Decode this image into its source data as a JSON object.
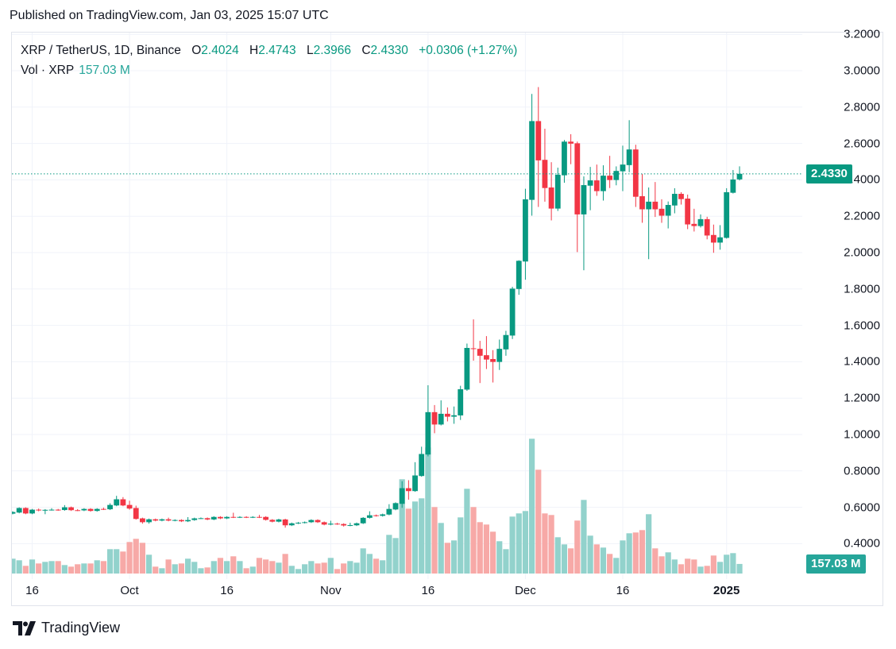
{
  "published": "Published on TradingView.com, Jan 03, 2025 15:07 UTC",
  "legend": {
    "symbol": "XRP / TetherUS, 1D, Binance",
    "o_label": "O",
    "o": "2.4024",
    "h_label": "H",
    "h": "2.4743",
    "l_label": "L",
    "l": "2.3966",
    "c_label": "C",
    "c": "2.4330",
    "change": "+0.0306 (+1.27%)",
    "vol_label": "Vol · XRP",
    "vol_value": "157.03 M"
  },
  "badges": {
    "price": "2.4330",
    "volume": "157.03 M"
  },
  "footer": {
    "brand": "TradingView"
  },
  "colors": {
    "up": "#089981",
    "down": "#F23645",
    "vol_up": "#92D2CC",
    "vol_down": "#F7A9A7",
    "grid": "#f0f3fa"
  },
  "chart_data": {
    "type": "candlestick",
    "title": "XRP / TetherUS, 1D, Binance",
    "y_range": [
      0.3,
      3.2
    ],
    "y_ticks": [
      "3.2000",
      "3.0000",
      "2.8000",
      "2.6000",
      "2.4000",
      "2.2000",
      "2.0000",
      "1.8000",
      "1.6000",
      "1.4000",
      "1.2000",
      "1.0000",
      "0.8000",
      "0.6000",
      "0.4000"
    ],
    "x_ticks": [
      {
        "label": "16",
        "date": "2024-09-16"
      },
      {
        "label": "Oct",
        "date": "2024-10-01"
      },
      {
        "label": "16",
        "date": "2024-10-16"
      },
      {
        "label": "Nov",
        "date": "2024-11-01"
      },
      {
        "label": "16",
        "date": "2024-11-16"
      },
      {
        "label": "Dec",
        "date": "2024-12-01"
      },
      {
        "label": "16",
        "date": "2024-12-16"
      },
      {
        "label": "2025",
        "date": "2025-01-01"
      }
    ],
    "grid": true,
    "last_price": 2.433,
    "columns": [
      "date",
      "open",
      "high",
      "low",
      "close",
      "volume_M"
    ],
    "candles": [
      [
        "2024-09-13",
        0.565,
        0.578,
        0.561,
        0.574,
        243
      ],
      [
        "2024-09-14",
        0.571,
        0.6,
        0.567,
        0.596,
        217
      ],
      [
        "2024-09-15",
        0.596,
        0.6,
        0.562,
        0.566,
        126
      ],
      [
        "2024-09-16",
        0.566,
        0.591,
        0.562,
        0.587,
        230
      ],
      [
        "2024-09-17",
        0.587,
        0.593,
        0.578,
        0.585,
        165
      ],
      [
        "2024-09-18",
        0.585,
        0.59,
        0.562,
        0.586,
        191
      ],
      [
        "2024-09-19",
        0.586,
        0.595,
        0.582,
        0.587,
        204
      ],
      [
        "2024-09-20",
        0.587,
        0.591,
        0.581,
        0.585,
        204
      ],
      [
        "2024-09-21",
        0.585,
        0.612,
        0.581,
        0.6,
        139
      ],
      [
        "2024-09-22",
        0.6,
        0.604,
        0.58,
        0.584,
        113
      ],
      [
        "2024-09-23",
        0.584,
        0.59,
        0.579,
        0.583,
        152
      ],
      [
        "2024-09-24",
        0.583,
        0.595,
        0.579,
        0.591,
        165
      ],
      [
        "2024-09-25",
        0.591,
        0.595,
        0.576,
        0.58,
        165
      ],
      [
        "2024-09-26",
        0.58,
        0.595,
        0.576,
        0.591,
        217
      ],
      [
        "2024-09-27",
        0.591,
        0.598,
        0.585,
        0.589,
        204
      ],
      [
        "2024-09-28",
        0.589,
        0.622,
        0.585,
        0.613,
        399
      ],
      [
        "2024-09-29",
        0.61,
        0.663,
        0.606,
        0.644,
        399
      ],
      [
        "2024-09-30",
        0.644,
        0.656,
        0.606,
        0.61,
        360
      ],
      [
        "2024-10-01",
        0.613,
        0.636,
        0.587,
        0.593,
        516
      ],
      [
        "2024-10-02",
        0.596,
        0.609,
        0.532,
        0.536,
        568
      ],
      [
        "2024-10-03",
        0.539,
        0.543,
        0.51,
        0.518,
        503
      ],
      [
        "2024-10-04",
        0.518,
        0.538,
        0.51,
        0.534,
        308
      ],
      [
        "2024-10-05",
        0.534,
        0.538,
        0.523,
        0.527,
        113
      ],
      [
        "2024-10-06",
        0.527,
        0.538,
        0.523,
        0.534,
        87
      ],
      [
        "2024-10-07",
        0.534,
        0.543,
        0.523,
        0.527,
        230
      ],
      [
        "2024-10-08",
        0.527,
        0.534,
        0.523,
        0.53,
        152
      ],
      [
        "2024-10-09",
        0.53,
        0.534,
        0.519,
        0.523,
        165
      ],
      [
        "2024-10-10",
        0.523,
        0.546,
        0.519,
        0.53,
        243
      ],
      [
        "2024-10-11",
        0.53,
        0.543,
        0.526,
        0.539,
        191
      ],
      [
        "2024-10-12",
        0.539,
        0.544,
        0.535,
        0.54,
        87
      ],
      [
        "2024-10-13",
        0.54,
        0.544,
        0.529,
        0.533,
        100
      ],
      [
        "2024-10-14",
        0.533,
        0.551,
        0.529,
        0.547,
        204
      ],
      [
        "2024-10-15",
        0.547,
        0.551,
        0.535,
        0.539,
        256
      ],
      [
        "2024-10-16",
        0.539,
        0.551,
        0.535,
        0.547,
        204
      ],
      [
        "2024-10-17",
        0.547,
        0.57,
        0.541,
        0.545,
        282
      ],
      [
        "2024-10-18",
        0.545,
        0.551,
        0.541,
        0.547,
        204
      ],
      [
        "2024-10-19",
        0.547,
        0.551,
        0.541,
        0.545,
        87
      ],
      [
        "2024-10-20",
        0.545,
        0.551,
        0.541,
        0.547,
        113
      ],
      [
        "2024-10-21",
        0.547,
        0.558,
        0.541,
        0.545,
        256
      ],
      [
        "2024-10-22",
        0.547,
        0.551,
        0.527,
        0.531,
        230
      ],
      [
        "2024-10-23",
        0.531,
        0.535,
        0.517,
        0.521,
        204
      ],
      [
        "2024-10-24",
        0.521,
        0.537,
        0.517,
        0.533,
        178
      ],
      [
        "2024-10-25",
        0.533,
        0.537,
        0.488,
        0.501,
        321
      ],
      [
        "2024-10-26",
        0.501,
        0.516,
        0.497,
        0.512,
        126
      ],
      [
        "2024-10-27",
        0.512,
        0.519,
        0.508,
        0.515,
        74
      ],
      [
        "2024-10-28",
        0.515,
        0.522,
        0.511,
        0.518,
        152
      ],
      [
        "2024-10-29",
        0.518,
        0.534,
        0.514,
        0.53,
        204
      ],
      [
        "2024-10-30",
        0.53,
        0.534,
        0.514,
        0.518,
        165
      ],
      [
        "2024-10-31",
        0.518,
        0.522,
        0.501,
        0.505,
        178
      ],
      [
        "2024-11-01",
        0.505,
        0.526,
        0.501,
        0.51,
        256
      ],
      [
        "2024-11-02",
        0.51,
        0.514,
        0.504,
        0.508,
        74
      ],
      [
        "2024-11-03",
        0.508,
        0.512,
        0.494,
        0.5,
        165
      ],
      [
        "2024-11-04",
        0.5,
        0.515,
        0.496,
        0.502,
        204
      ],
      [
        "2024-11-05",
        0.501,
        0.516,
        0.497,
        0.512,
        178
      ],
      [
        "2024-11-06",
        0.512,
        0.546,
        0.508,
        0.542,
        412
      ],
      [
        "2024-11-07",
        0.542,
        0.578,
        0.538,
        0.556,
        321
      ],
      [
        "2024-11-08",
        0.556,
        0.56,
        0.549,
        0.553,
        243
      ],
      [
        "2024-11-09",
        0.553,
        0.565,
        0.549,
        0.561,
        217
      ],
      [
        "2024-11-10",
        0.56,
        0.617,
        0.556,
        0.591,
        633
      ],
      [
        "2024-11-11",
        0.588,
        0.627,
        0.584,
        0.623,
        581
      ],
      [
        "2024-11-12",
        0.619,
        0.743,
        0.597,
        0.705,
        1543
      ],
      [
        "2024-11-13",
        0.705,
        0.749,
        0.642,
        0.689,
        1062
      ],
      [
        "2024-11-14",
        0.689,
        0.848,
        0.685,
        0.775,
        1179
      ],
      [
        "2024-11-15",
        0.772,
        0.933,
        0.768,
        0.893,
        1231
      ],
      [
        "2024-11-16",
        0.89,
        1.271,
        0.88,
        1.123,
        2063
      ],
      [
        "2024-11-17",
        1.123,
        1.162,
        1.007,
        1.055,
        1088
      ],
      [
        "2024-11-18",
        1.055,
        1.188,
        1.05,
        1.114,
        828
      ],
      [
        "2024-11-19",
        1.114,
        1.149,
        1.072,
        1.098,
        503
      ],
      [
        "2024-11-20",
        1.098,
        1.154,
        1.059,
        1.106,
        542
      ],
      [
        "2024-11-21",
        1.105,
        1.268,
        1.08,
        1.249,
        919
      ],
      [
        "2024-11-22",
        1.247,
        1.5,
        1.24,
        1.476,
        1387
      ],
      [
        "2024-11-23",
        1.474,
        1.633,
        1.406,
        1.47,
        1088
      ],
      [
        "2024-11-24",
        1.471,
        1.515,
        1.283,
        1.433,
        841
      ],
      [
        "2024-11-25",
        1.436,
        1.541,
        1.36,
        1.412,
        802
      ],
      [
        "2024-11-26",
        1.415,
        1.464,
        1.286,
        1.399,
        685
      ],
      [
        "2024-11-27",
        1.399,
        1.522,
        1.355,
        1.471,
        529
      ],
      [
        "2024-11-28",
        1.468,
        1.57,
        1.433,
        1.547,
        399
      ],
      [
        "2024-11-29",
        1.544,
        1.812,
        1.525,
        1.802,
        932
      ],
      [
        "2024-11-30",
        1.8,
        1.958,
        1.768,
        1.955,
        984
      ],
      [
        "2024-12-01",
        1.951,
        2.351,
        1.851,
        2.293,
        1023
      ],
      [
        "2024-12-02",
        2.29,
        2.872,
        2.203,
        2.723,
        2206
      ],
      [
        "2024-12-03",
        2.723,
        2.91,
        2.251,
        2.507,
        1699
      ],
      [
        "2024-12-04",
        2.51,
        2.681,
        2.28,
        2.355,
        984
      ],
      [
        "2024-12-05",
        2.358,
        2.497,
        2.177,
        2.242,
        958
      ],
      [
        "2024-12-06",
        2.242,
        2.467,
        2.229,
        2.428,
        594
      ],
      [
        "2024-12-07",
        2.425,
        2.619,
        2.384,
        2.61,
        477
      ],
      [
        "2024-12-08",
        2.61,
        2.651,
        2.486,
        2.599,
        412
      ],
      [
        "2024-12-09",
        2.601,
        2.61,
        2.003,
        2.21,
        867
      ],
      [
        "2024-12-10",
        2.21,
        2.419,
        1.903,
        2.371,
        1205
      ],
      [
        "2024-12-11",
        2.368,
        2.471,
        2.233,
        2.397,
        620
      ],
      [
        "2024-12-12",
        2.397,
        2.484,
        2.312,
        2.338,
        477
      ],
      [
        "2024-12-13",
        2.338,
        2.48,
        2.286,
        2.423,
        425
      ],
      [
        "2024-12-14",
        2.423,
        2.532,
        2.355,
        2.399,
        321
      ],
      [
        "2024-12-15",
        2.399,
        2.474,
        2.37,
        2.449,
        256
      ],
      [
        "2024-12-16",
        2.447,
        2.588,
        2.338,
        2.484,
        542
      ],
      [
        "2024-12-17",
        2.481,
        2.728,
        2.442,
        2.567,
        659
      ],
      [
        "2024-12-18",
        2.567,
        2.593,
        2.251,
        2.307,
        672
      ],
      [
        "2024-12-19",
        2.31,
        2.432,
        2.164,
        2.238,
        711
      ],
      [
        "2024-12-20",
        2.238,
        2.358,
        1.964,
        2.28,
        971
      ],
      [
        "2024-12-21",
        2.28,
        2.388,
        2.196,
        2.238,
        412
      ],
      [
        "2024-12-22",
        2.241,
        2.293,
        2.164,
        2.203,
        282
      ],
      [
        "2024-12-23",
        2.203,
        2.281,
        2.133,
        2.262,
        347
      ],
      [
        "2024-12-24",
        2.259,
        2.354,
        2.216,
        2.323,
        230
      ],
      [
        "2024-12-25",
        2.323,
        2.332,
        2.264,
        2.294,
        152
      ],
      [
        "2024-12-26",
        2.297,
        2.319,
        2.129,
        2.155,
        243
      ],
      [
        "2024-12-27",
        2.158,
        2.241,
        2.116,
        2.146,
        230
      ],
      [
        "2024-12-28",
        2.146,
        2.21,
        2.138,
        2.184,
        113
      ],
      [
        "2024-12-29",
        2.184,
        2.197,
        2.073,
        2.094,
        126
      ],
      [
        "2024-12-30",
        2.097,
        2.154,
        1.999,
        2.055,
        295
      ],
      [
        "2024-12-31",
        2.055,
        2.151,
        2.016,
        2.084,
        191
      ],
      [
        "2025-01-01",
        2.081,
        2.354,
        2.077,
        2.332,
        308
      ],
      [
        "2025-01-02",
        2.329,
        2.454,
        2.325,
        2.402,
        334
      ],
      [
        "2025-01-03",
        2.4024,
        2.4743,
        2.3966,
        2.433,
        157.03
      ]
    ]
  }
}
